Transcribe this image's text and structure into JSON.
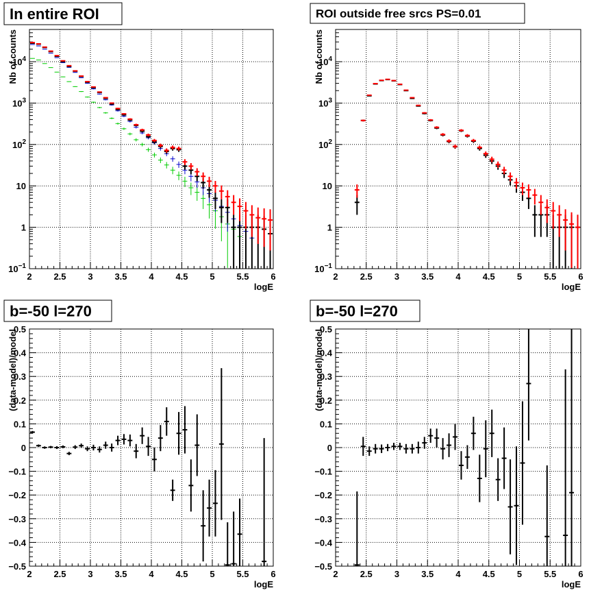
{
  "chart_data": [
    {
      "type": "scatter",
      "title": "In entire ROI",
      "xlabel": "logE",
      "ylabel": "Nb of counts",
      "xlim": [
        2,
        6
      ],
      "ylim": [
        0.1,
        60000
      ],
      "log_y": true,
      "grid": true,
      "x_ticks": [
        "2",
        "2.5",
        "3",
        "3.5",
        "4",
        "4.5",
        "5",
        "5.5",
        "6"
      ],
      "y_ticks": [
        {
          "v": 0.1,
          "base": "10",
          "exp": "−1"
        },
        {
          "v": 1,
          "label": "1"
        },
        {
          "v": 10,
          "label": "10"
        },
        {
          "v": 100,
          "base": "10",
          "exp": "2"
        },
        {
          "v": 1000,
          "base": "10",
          "exp": "3"
        },
        {
          "v": 10000,
          "base": "10",
          "exp": "4"
        }
      ],
      "colors": {
        "black": "#000000",
        "red": "#ff0000",
        "blue": "#0000cc",
        "green": "#00cc00"
      },
      "series": [
        {
          "color": "green",
          "x": [
            2.05,
            2.15,
            2.25,
            2.35,
            2.45,
            2.55,
            2.65,
            2.75,
            2.85,
            2.95,
            3.05,
            3.15,
            3.25,
            3.35,
            3.45,
            3.55,
            3.65,
            3.75,
            3.85,
            3.95,
            4.05,
            4.15,
            4.25,
            4.35,
            4.45,
            4.55,
            4.65,
            4.75,
            4.85,
            4.95,
            5.05,
            5.15,
            5.25,
            5.35,
            5.45
          ],
          "y": [
            12000,
            11000,
            9000,
            7200,
            5600,
            4300,
            3300,
            2500,
            1900,
            1400,
            1050,
            780,
            580,
            430,
            320,
            240,
            180,
            130,
            100,
            75,
            56,
            42,
            32,
            24,
            18,
            13,
            9,
            7,
            5,
            3.5,
            2.5,
            1.8,
            1.2,
            0.9,
            0.6
          ]
        },
        {
          "color": "blue",
          "x": [
            2.05,
            2.15,
            2.25,
            2.35,
            2.45,
            2.55,
            2.65,
            2.75,
            2.85,
            2.95,
            3.05,
            3.15,
            3.25,
            3.35,
            3.45,
            3.55,
            3.65,
            3.75,
            3.85,
            3.95,
            4.05,
            4.15,
            4.25,
            4.35,
            4.45,
            4.55,
            4.65,
            4.75,
            4.85,
            4.95,
            5.05,
            5.15,
            5.25,
            5.35,
            5.45,
            5.55,
            5.65
          ],
          "y": [
            26000,
            24000,
            20000,
            16000,
            12500,
            9500,
            7300,
            5500,
            4100,
            3000,
            2200,
            1650,
            1200,
            900,
            650,
            480,
            360,
            260,
            190,
            145,
            110,
            80,
            60,
            45,
            33,
            24,
            17,
            12.5,
            9,
            6.5,
            4.5,
            3.2,
            2.3,
            1.6,
            1.1,
            0.8,
            0.55
          ]
        },
        {
          "color": "black",
          "x": [
            2.05,
            2.15,
            2.25,
            2.35,
            2.45,
            2.55,
            2.65,
            2.75,
            2.85,
            2.95,
            3.05,
            3.15,
            3.25,
            3.35,
            3.45,
            3.55,
            3.65,
            3.75,
            3.85,
            3.95,
            4.05,
            4.15,
            4.25,
            4.35,
            4.45,
            4.55,
            4.65,
            4.75,
            4.85,
            4.95,
            5.05,
            5.15,
            5.25,
            5.35,
            5.45,
            5.55,
            5.65,
            5.75,
            5.85,
            5.95
          ],
          "y": [
            28000,
            26500,
            22000,
            17500,
            13500,
            10000,
            7700,
            5900,
            4400,
            3200,
            2350,
            1800,
            1300,
            950,
            700,
            520,
            390,
            290,
            210,
            155,
            115,
            90,
            68,
            80,
            75,
            30,
            24,
            17,
            12,
            8,
            5,
            3,
            3,
            1,
            1,
            1,
            1,
            1,
            0.9,
            0.7
          ]
        },
        {
          "color": "red",
          "x": [
            2.05,
            2.15,
            2.25,
            2.35,
            2.45,
            2.55,
            2.65,
            2.75,
            2.85,
            2.95,
            3.05,
            3.15,
            3.25,
            3.35,
            3.45,
            3.55,
            3.65,
            3.75,
            3.85,
            3.95,
            4.05,
            4.15,
            4.25,
            4.35,
            4.45,
            4.55,
            4.65,
            4.75,
            4.85,
            4.95,
            5.05,
            5.15,
            5.25,
            5.35,
            5.45,
            5.55,
            5.65,
            5.75,
            5.85,
            5.95
          ],
          "y": [
            29000,
            27000,
            22500,
            18000,
            14000,
            10500,
            8000,
            6000,
            4500,
            3300,
            2450,
            1850,
            1350,
            1000,
            740,
            550,
            410,
            300,
            225,
            170,
            125,
            95,
            72,
            85,
            80,
            38,
            30,
            22,
            17,
            13,
            10,
            7.5,
            5.5,
            4,
            3.2,
            2.5,
            2,
            1.7,
            1.6,
            1.5
          ]
        }
      ]
    },
    {
      "type": "scatter",
      "title": "ROI outside free srcs PS=0.01",
      "xlabel": "logE",
      "ylabel": "Nb of counts",
      "xlim": [
        2,
        6
      ],
      "ylim": [
        0.1,
        60000
      ],
      "log_y": true,
      "grid": true,
      "x_ticks": [
        "2",
        "2.5",
        "3",
        "3.5",
        "4",
        "4.5",
        "5",
        "5.5",
        "6"
      ],
      "y_ticks": [
        {
          "v": 0.1,
          "base": "10",
          "exp": "−1"
        },
        {
          "v": 1,
          "label": "1"
        },
        {
          "v": 10,
          "label": "10"
        },
        {
          "v": 100,
          "base": "10",
          "exp": "2"
        },
        {
          "v": 1000,
          "base": "10",
          "exp": "3"
        },
        {
          "v": 10000,
          "base": "10",
          "exp": "4"
        }
      ],
      "colors": {
        "black": "#000000",
        "red": "#ff0000"
      },
      "series": [
        {
          "color": "black",
          "x": [
            2.35,
            2.45,
            2.55,
            2.65,
            2.75,
            2.85,
            2.95,
            3.05,
            3.15,
            3.25,
            3.35,
            3.45,
            3.55,
            3.65,
            3.75,
            3.85,
            3.95,
            4.05,
            4.15,
            4.25,
            4.35,
            4.45,
            4.55,
            4.65,
            4.75,
            4.85,
            4.95,
            5.05,
            5.15,
            5.25,
            5.35,
            5.45,
            5.55,
            5.65,
            5.75,
            5.85,
            5.95
          ],
          "y": [
            4,
            380,
            1500,
            2900,
            3500,
            3700,
            3450,
            2800,
            2000,
            1300,
            850,
            560,
            380,
            250,
            170,
            118,
            88,
            215,
            160,
            120,
            80,
            55,
            40,
            30,
            20,
            14,
            10,
            7,
            5,
            2,
            2,
            2,
            1,
            1,
            1,
            1,
            1
          ]
        },
        {
          "color": "red",
          "x": [
            2.35,
            2.45,
            2.55,
            2.65,
            2.75,
            2.85,
            2.95,
            3.05,
            3.15,
            3.25,
            3.35,
            3.45,
            3.55,
            3.65,
            3.75,
            3.85,
            3.95,
            4.05,
            4.15,
            4.25,
            4.35,
            4.45,
            4.55,
            4.65,
            4.75,
            4.85,
            4.95,
            5.05,
            5.15,
            5.25,
            5.35,
            5.45,
            5.55,
            5.65,
            5.75,
            5.85,
            5.95
          ],
          "y": [
            8,
            380,
            1550,
            2950,
            3550,
            3750,
            3500,
            2850,
            2050,
            1350,
            880,
            580,
            390,
            260,
            175,
            122,
            90,
            220,
            165,
            125,
            85,
            60,
            44,
            33,
            24,
            17,
            12,
            9,
            8,
            6,
            4,
            3,
            2.5,
            2,
            1.5,
            1.2,
            1
          ]
        }
      ]
    },
    {
      "type": "scatter",
      "title": "b=-50 l=270",
      "xlabel": "logE",
      "ylabel": "(data-model)/model",
      "xlim": [
        2,
        6
      ],
      "ylim": [
        -0.5,
        0.5
      ],
      "log_y": false,
      "grid": true,
      "x_ticks": [
        "2",
        "2.5",
        "3",
        "3.5",
        "4",
        "4.5",
        "5",
        "5.5",
        "6"
      ],
      "y_ticks": [
        "−0.5",
        "−0.4",
        "−0.3",
        "−0.2",
        "−0.1",
        "0",
        "0.1",
        "0.2",
        "0.3",
        "0.4",
        "0.5"
      ],
      "colors": {
        "black": "#000000"
      },
      "series": [
        {
          "color": "black",
          "x": [
            2.05,
            2.15,
            2.25,
            2.35,
            2.45,
            2.55,
            2.65,
            2.75,
            2.85,
            2.95,
            3.05,
            3.15,
            3.25,
            3.35,
            3.45,
            3.55,
            3.65,
            3.75,
            3.85,
            3.95,
            4.05,
            4.15,
            4.25,
            4.35,
            4.45,
            4.55,
            4.65,
            4.75,
            4.85,
            4.95,
            5.05,
            5.15,
            5.25,
            5.35,
            5.45,
            5.55,
            5.65,
            5.75,
            5.85,
            5.95
          ],
          "y": [
            0.065,
            0.008,
            0.0,
            0.002,
            0.0,
            0.003,
            -0.025,
            0.002,
            0.008,
            -0.005,
            0.0,
            -0.008,
            0.01,
            0.0,
            0.03,
            0.035,
            0.03,
            -0.015,
            0.05,
            0.005,
            -0.05,
            0.04,
            0.11,
            -0.18,
            0.06,
            0.075,
            -0.16,
            0.01,
            -0.33,
            -0.255,
            -0.235,
            0.015,
            -0.495,
            -0.49,
            -0.365,
            0.0,
            0.0,
            0.0,
            -0.48,
            0.0
          ],
          "err": [
            0.005,
            0.005,
            0.005,
            0.005,
            0.006,
            0.006,
            0.007,
            0.008,
            0.009,
            0.01,
            0.012,
            0.013,
            0.015,
            0.017,
            0.02,
            0.022,
            0.025,
            0.03,
            0.035,
            0.04,
            0.05,
            0.055,
            0.06,
            0.045,
            0.09,
            0.1,
            0.11,
            0.13,
            0.15,
            0.12,
            0.14,
            0.32,
            0.18,
            0.22,
            0.15,
            0,
            0,
            0,
            0.52,
            0
          ],
          "visible": [
            true,
            true,
            true,
            true,
            true,
            true,
            true,
            true,
            true,
            true,
            true,
            true,
            true,
            true,
            true,
            true,
            true,
            true,
            true,
            true,
            true,
            true,
            true,
            true,
            true,
            true,
            true,
            true,
            true,
            true,
            true,
            true,
            true,
            true,
            true,
            false,
            false,
            false,
            true,
            false
          ]
        }
      ]
    },
    {
      "type": "scatter",
      "title": "b=-50 l=270",
      "xlabel": "logE",
      "ylabel": "(data-model)/model",
      "xlim": [
        2,
        6
      ],
      "ylim": [
        -0.5,
        0.5
      ],
      "log_y": false,
      "grid": true,
      "x_ticks": [
        "2",
        "2.5",
        "3",
        "3.5",
        "4",
        "4.5",
        "5",
        "5.5",
        "6"
      ],
      "y_ticks": [
        "−0.5",
        "−0.4",
        "−0.3",
        "−0.2",
        "−0.1",
        "0",
        "0.1",
        "0.2",
        "0.3",
        "0.4",
        "0.5"
      ],
      "colors": {
        "black": "#000000"
      },
      "series": [
        {
          "color": "black",
          "x": [
            2.35,
            2.45,
            2.55,
            2.65,
            2.75,
            2.85,
            2.95,
            3.05,
            3.15,
            3.25,
            3.35,
            3.45,
            3.55,
            3.65,
            3.75,
            3.85,
            3.95,
            4.05,
            4.15,
            4.25,
            4.35,
            4.45,
            4.55,
            4.65,
            4.75,
            4.85,
            4.95,
            5.05,
            5.15,
            5.25,
            5.45,
            5.75,
            5.85
          ],
          "y": [
            -0.495,
            0.005,
            -0.015,
            -0.005,
            -0.005,
            0.0,
            0.005,
            0.005,
            -0.005,
            -0.005,
            0.0,
            0.02,
            0.05,
            0.04,
            -0.005,
            0.01,
            0.045,
            -0.075,
            -0.04,
            0.06,
            -0.13,
            -0.005,
            0.06,
            -0.135,
            -0.045,
            -0.25,
            -0.245,
            -0.065,
            0.27,
            -0.1,
            -0.375,
            -0.37,
            -0.19
          ],
          "err": [
            0.31,
            0.04,
            0.02,
            0.02,
            0.018,
            0.015,
            0.015,
            0.015,
            0.02,
            0.02,
            0.025,
            0.025,
            0.03,
            0.04,
            0.045,
            0.05,
            0.055,
            0.06,
            0.05,
            0.07,
            0.1,
            0.12,
            0.1,
            0.09,
            0.13,
            0.2,
            0.25,
            0.26,
            0.24,
            0.2,
            0.3,
            0.7,
            0.85
          ],
          "visible": [
            true,
            true,
            true,
            true,
            true,
            true,
            true,
            true,
            true,
            true,
            true,
            true,
            true,
            true,
            true,
            true,
            true,
            true,
            true,
            true,
            true,
            true,
            true,
            true,
            true,
            true,
            true,
            true,
            true,
            false,
            true,
            true,
            true
          ]
        }
      ]
    }
  ]
}
